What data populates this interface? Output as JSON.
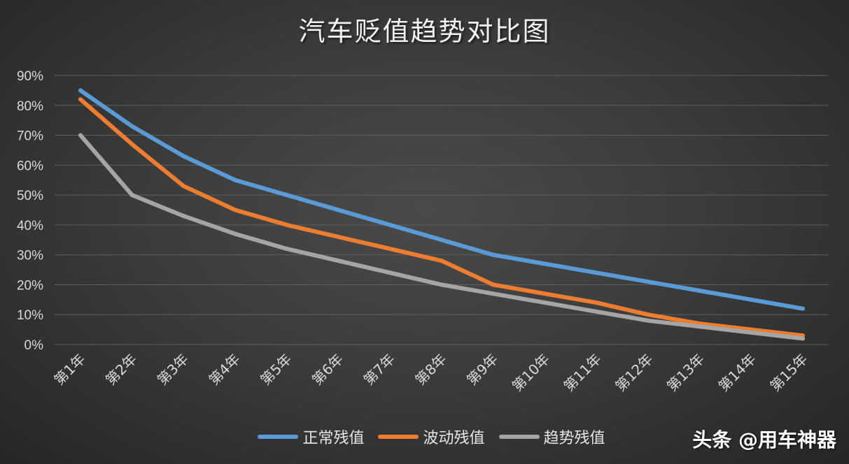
{
  "title": "汽车贬值趋势对比图",
  "watermark": "头条 @用车神器",
  "chart_data": {
    "type": "line",
    "title": "汽车贬值趋势对比图",
    "categories": [
      "第1年",
      "第2年",
      "第3年",
      "第4年",
      "第5年",
      "第6年",
      "第7年",
      "第8年",
      "第9年",
      "第10年",
      "第11年",
      "第12年",
      "第13年",
      "第14年",
      "第15年"
    ],
    "ylim": [
      0,
      90
    ],
    "yticks": [
      "0%",
      "10%",
      "20%",
      "30%",
      "40%",
      "50%",
      "60%",
      "70%",
      "80%",
      "90%"
    ],
    "grid": true,
    "legend_position": "bottom",
    "series": [
      {
        "name": "正常残值",
        "color": "#5b9bd5",
        "values": [
          85,
          73,
          63,
          55,
          50,
          45,
          40,
          35,
          30,
          27,
          24,
          21,
          18,
          15,
          12
        ]
      },
      {
        "name": "波动残值",
        "color": "#ed7d31",
        "values": [
          82,
          67,
          53,
          45,
          40,
          36,
          32,
          28,
          20,
          17,
          14,
          10,
          7,
          5,
          3
        ]
      },
      {
        "name": "趋势残值",
        "color": "#a5a5a5",
        "values": [
          70,
          50,
          43,
          37,
          32,
          28,
          24,
          20,
          17,
          14,
          11,
          8,
          6,
          4,
          2
        ]
      }
    ]
  }
}
